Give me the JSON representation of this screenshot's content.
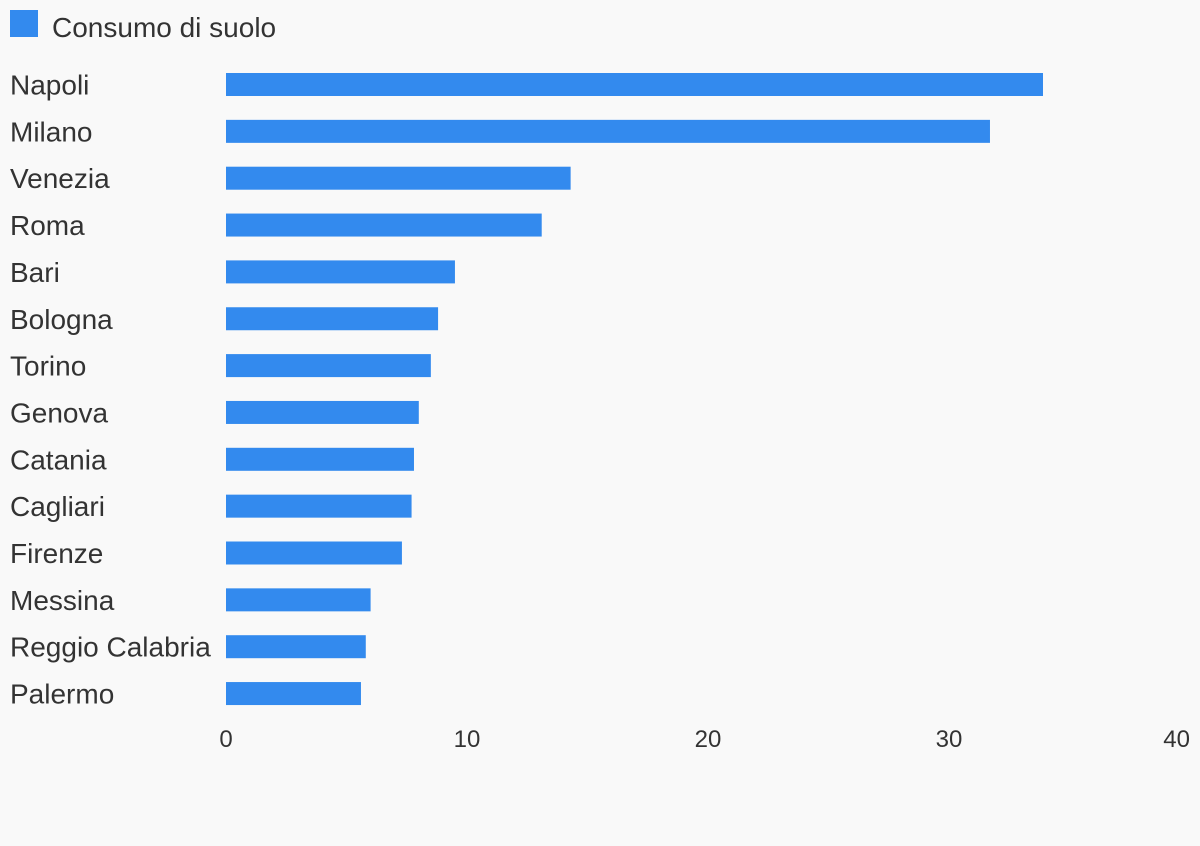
{
  "chart_data": {
    "type": "bar",
    "orientation": "horizontal",
    "legend_position": "top-left",
    "grid": false,
    "title": "",
    "xlabel": "",
    "ylabel": "",
    "xlim": [
      0,
      40
    ],
    "x_ticks": [
      "0",
      "10",
      "20",
      "30",
      "40"
    ],
    "categories": [
      "Napoli",
      "Milano",
      "Venezia",
      "Roma",
      "Bari",
      "Bologna",
      "Torino",
      "Genova",
      "Catania",
      "Cagliari",
      "Firenze",
      "Messina",
      "Reggio Calabria",
      "Palermo"
    ],
    "series": [
      {
        "name": "Consumo di suolo",
        "color": "#338aee",
        "values": [
          33.9,
          31.7,
          14.3,
          13.1,
          9.5,
          8.8,
          8.5,
          8.0,
          7.8,
          7.7,
          7.3,
          6.0,
          5.8,
          5.6
        ]
      }
    ]
  }
}
